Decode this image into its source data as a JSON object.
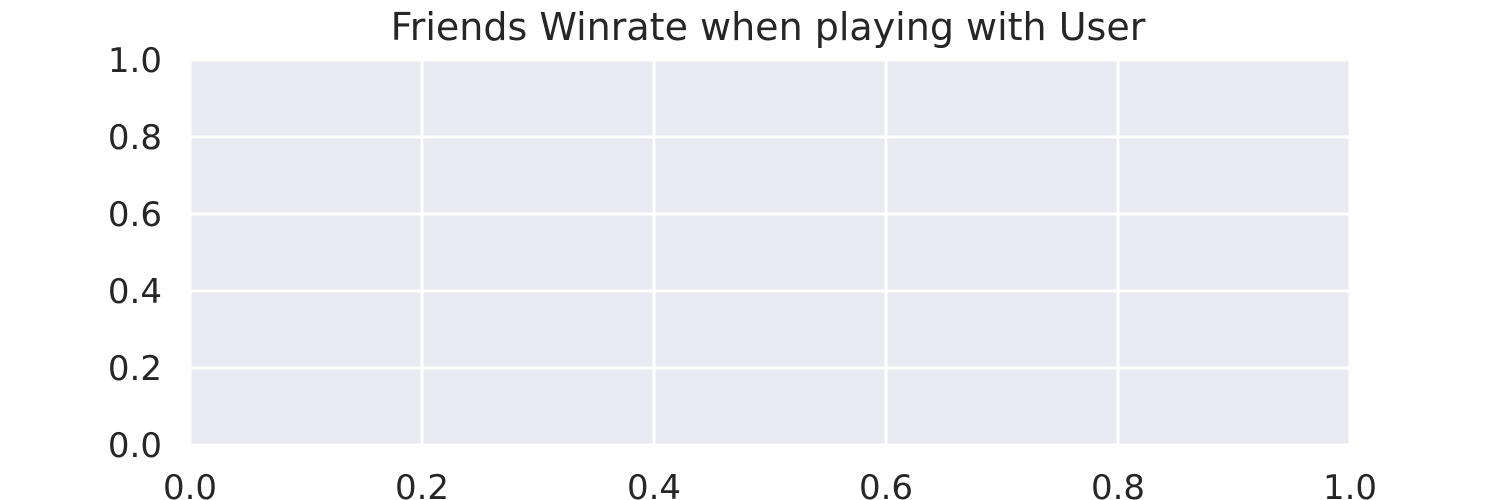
{
  "chart_data": {
    "type": "line",
    "title": "Friends Winrate when playing with User",
    "xlabel": "",
    "ylabel": "",
    "xlim": [
      0,
      1
    ],
    "ylim": [
      0,
      1
    ],
    "xticks": [
      "0.0",
      "0.2",
      "0.4",
      "0.6",
      "0.8",
      "1.0"
    ],
    "yticks": [
      "0.0",
      "0.2",
      "0.4",
      "0.6",
      "0.8",
      "1.0"
    ],
    "series": [],
    "grid": true,
    "colors": {
      "plot_background": "#eaeaf2",
      "grid": "#ffffff",
      "text": "#262626"
    }
  }
}
